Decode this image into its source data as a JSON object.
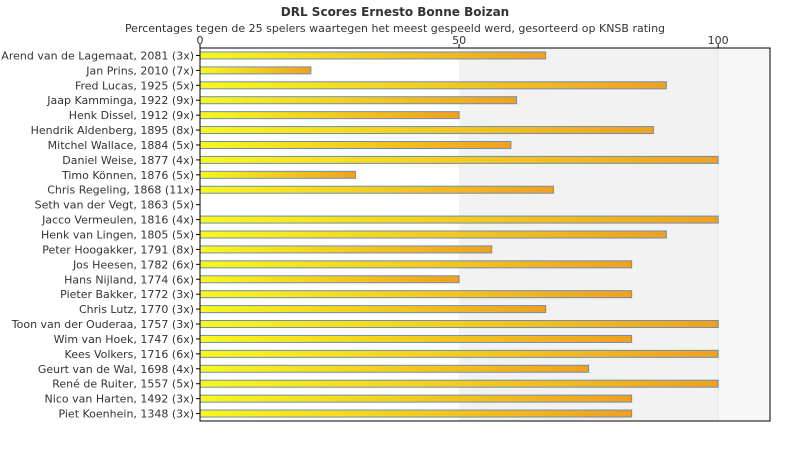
{
  "chart_data": {
    "type": "bar",
    "orientation": "horizontal",
    "title": "DRL Scores Ernesto Bonne Boizan",
    "subtitle": "Percentages tegen de 25 spelers waartegen het meest gespeeld werd, gesorteerd op KNSB rating",
    "xlim": [
      0,
      110
    ],
    "xticks": [
      "0",
      "50",
      "100"
    ],
    "categories": [
      "Arend van de Lagemaat, 2081 (3x)",
      "Jan Prins, 2010 (7x)",
      "Fred Lucas, 1925 (5x)",
      "Jaap Kamminga, 1922 (9x)",
      "Henk Dissel, 1912 (9x)",
      "Hendrik Aldenberg, 1895 (8x)",
      "Mitchel Wallace, 1884 (5x)",
      "Daniel Weise, 1877 (4x)",
      "Timo Können, 1876 (5x)",
      "Chris Regeling, 1868 (11x)",
      "Seth van der Vegt, 1863 (5x)",
      "Jacco Vermeulen, 1816 (4x)",
      "Henk van Lingen, 1805 (5x)",
      "Peter Hoogakker, 1791 (8x)",
      "Jos Heesen, 1782 (6x)",
      "Hans Nijland, 1774 (6x)",
      "Pieter Bakker, 1772 (3x)",
      "Chris Lutz, 1770 (3x)",
      "Toon van der Ouderaa, 1757 (3x)",
      "Wim van Hoek, 1747 (6x)",
      "Kees Volkers, 1716 (6x)",
      "Geurt van de Wal, 1698 (4x)",
      "René de Ruiter, 1557 (5x)",
      "Nico van Harten, 1492 (3x)",
      "Piet Koenhein, 1348 (3x)"
    ],
    "values": [
      66.7,
      21.4,
      90,
      61.1,
      50,
      87.5,
      60,
      100,
      30,
      68.2,
      0,
      100,
      90,
      56.3,
      83.3,
      50,
      83.3,
      66.7,
      100,
      83.3,
      100,
      75,
      100,
      83.3,
      83.3
    ],
    "grid": "vertical bands",
    "legend": "none",
    "colors": {
      "bar_start": "#f7f71e",
      "bar_end": "#f0a020",
      "bar_border": "#6f8fb0",
      "band": "#f2f2f2",
      "band_light": "#f7f7f7",
      "axis": "#000000"
    }
  }
}
